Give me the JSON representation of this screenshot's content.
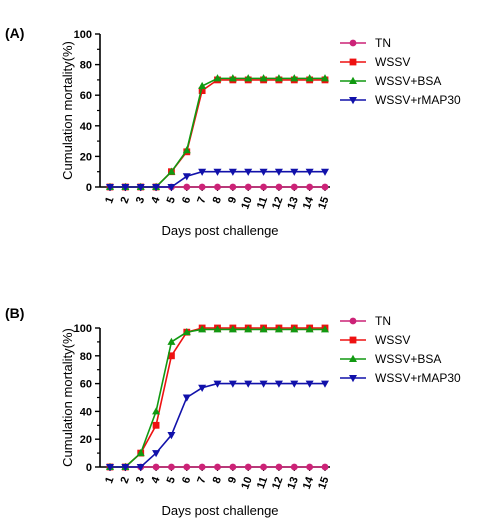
{
  "chart_data": [
    {
      "type": "line",
      "panel_label": "(A)",
      "xlabel": "Days post challenge",
      "ylabel": "Cumulation mortality(%)",
      "x": [
        1,
        2,
        3,
        4,
        5,
        6,
        7,
        8,
        9,
        10,
        11,
        12,
        13,
        14,
        15
      ],
      "ylim": [
        0,
        100
      ],
      "yticks": [
        0,
        20,
        40,
        60,
        80,
        100
      ],
      "legend_position": "right",
      "series": [
        {
          "name": "TN",
          "color": "#cc2277",
          "marker": "circle",
          "values": [
            0,
            0,
            0,
            0,
            0,
            0,
            0,
            0,
            0,
            0,
            0,
            0,
            0,
            0,
            0
          ]
        },
        {
          "name": "WSSV",
          "color": "#ee1111",
          "marker": "square",
          "values": [
            0,
            0,
            0,
            0,
            10,
            23,
            63,
            70,
            70,
            70,
            70,
            70,
            70,
            70,
            70
          ]
        },
        {
          "name": "WSSV+BSA",
          "color": "#119911",
          "marker": "triangle-up",
          "values": [
            0,
            0,
            0,
            0,
            10,
            24,
            66,
            71,
            71,
            71,
            71,
            71,
            71,
            71,
            71
          ]
        },
        {
          "name": "WSSV+rMAP30",
          "color": "#1111aa",
          "marker": "triangle-down",
          "values": [
            0,
            0,
            0,
            0,
            0,
            7,
            10,
            10,
            10,
            10,
            10,
            10,
            10,
            10,
            10
          ]
        }
      ]
    },
    {
      "type": "line",
      "panel_label": "(B)",
      "xlabel": "Days post challenge",
      "ylabel": "Cumulation mortality(%)",
      "x": [
        1,
        2,
        3,
        4,
        5,
        6,
        7,
        8,
        9,
        10,
        11,
        12,
        13,
        14,
        15
      ],
      "ylim": [
        0,
        100
      ],
      "yticks": [
        0,
        20,
        40,
        60,
        80,
        100
      ],
      "legend_position": "right",
      "series": [
        {
          "name": "TN",
          "color": "#cc2277",
          "marker": "circle",
          "values": [
            0,
            0,
            0,
            0,
            0,
            0,
            0,
            0,
            0,
            0,
            0,
            0,
            0,
            0,
            0
          ]
        },
        {
          "name": "WSSV",
          "color": "#ee1111",
          "marker": "square",
          "values": [
            0,
            0,
            10,
            30,
            80,
            97,
            100,
            100,
            100,
            100,
            100,
            100,
            100,
            100,
            100
          ]
        },
        {
          "name": "WSSV+BSA",
          "color": "#119911",
          "marker": "triangle-up",
          "values": [
            0,
            0,
            10,
            40,
            90,
            97,
            99,
            99,
            99,
            99,
            99,
            99,
            99,
            99,
            99
          ]
        },
        {
          "name": "WSSV+rMAP30",
          "color": "#1111aa",
          "marker": "triangle-down",
          "values": [
            0,
            0,
            0,
            10,
            23,
            50,
            57,
            60,
            60,
            60,
            60,
            60,
            60,
            60,
            60
          ]
        }
      ]
    }
  ]
}
